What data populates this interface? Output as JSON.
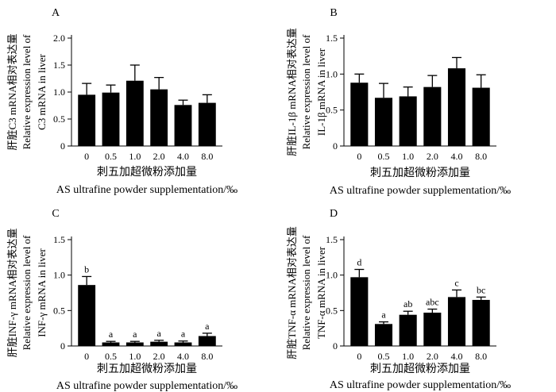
{
  "chart_data": [
    {
      "type": "bar",
      "panel": "A",
      "categories": [
        "0",
        "0.5",
        "1.0",
        "2.0",
        "4.0",
        "8.0"
      ],
      "values": [
        0.95,
        0.99,
        1.21,
        1.05,
        0.76,
        0.8
      ],
      "errors": [
        0.21,
        0.14,
        0.29,
        0.22,
        0.09,
        0.15
      ],
      "letters": [],
      "ylabel_cn": "肝脏C3 mRNA相对表达量",
      "ylabel_en": "Relative expression level of",
      "ylabel_gene": "C3 mRNA in liver",
      "ylim": [
        0,
        2.0
      ],
      "yticks": [
        "0",
        "0.5",
        "1.0",
        "1.5",
        "2.0"
      ],
      "xlabel_cn": "刺五加超微粉添加量",
      "xlabel_en": "AS ultrafine powder supplementation/‰"
    },
    {
      "type": "bar",
      "panel": "B",
      "categories": [
        "0",
        "0.5",
        "1.0",
        "2.0",
        "4.0",
        "8.0"
      ],
      "values": [
        0.88,
        0.67,
        0.69,
        0.82,
        1.08,
        0.81
      ],
      "errors": [
        0.12,
        0.2,
        0.13,
        0.16,
        0.15,
        0.18
      ],
      "letters": [],
      "ylabel_cn": "肝脏IL-1β mRNA相对表达量",
      "ylabel_en": "Relative expression level of",
      "ylabel_gene": "IL-1β mRNA in liver",
      "ylim": [
        0,
        1.5
      ],
      "yticks": [
        "0",
        "0.5",
        "1.0",
        "1.5"
      ],
      "xlabel_cn": "刺五加超微粉添加量",
      "xlabel_en": "AS ultrafine powder supplementation/‰"
    },
    {
      "type": "bar",
      "panel": "C",
      "categories": [
        "0",
        "0.5",
        "1.0",
        "2.0",
        "4.0",
        "8.0"
      ],
      "values": [
        0.86,
        0.05,
        0.05,
        0.06,
        0.05,
        0.14
      ],
      "errors": [
        0.12,
        0.015,
        0.015,
        0.02,
        0.02,
        0.04
      ],
      "letters": [
        "b",
        "a",
        "a",
        "a",
        "a",
        "a"
      ],
      "ylabel_cn": "肝脏INF-γ mRNA相对表达量",
      "ylabel_en": "Relative expression level of",
      "ylabel_gene": "INF-γ mRNA in liver",
      "ylim": [
        0,
        1.5
      ],
      "yticks": [
        "0",
        "0.5",
        "1.0",
        "1.5"
      ],
      "xlabel_cn": "刺五加超微粉添加量",
      "xlabel_en": "AS ultrafine powder supplementation/‰"
    },
    {
      "type": "bar",
      "panel": "D",
      "categories": [
        "0",
        "0.5",
        "1.0",
        "2.0",
        "4.0",
        "8.0"
      ],
      "values": [
        0.97,
        0.31,
        0.44,
        0.47,
        0.69,
        0.65
      ],
      "errors": [
        0.11,
        0.03,
        0.05,
        0.05,
        0.1,
        0.04
      ],
      "letters": [
        "d",
        "a",
        "ab",
        "abc",
        "c",
        "bc"
      ],
      "ylabel_cn": "肝脏TNF-α mRNA相对表达量",
      "ylabel_en": "Relative expression level of",
      "ylabel_gene": "TNF-α mRNA in liver",
      "ylim": [
        0,
        1.5
      ],
      "yticks": [
        "0",
        "0.5",
        "1.0",
        "1.5"
      ],
      "xlabel_cn": "刺五加超微粉添加量",
      "xlabel_en": "AS ultrafine powder supplementation/‰"
    }
  ]
}
